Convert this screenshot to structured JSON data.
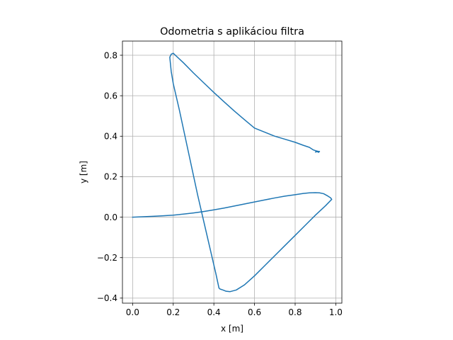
{
  "chart_data": {
    "type": "line",
    "title": "Odometria s aplikáciou filtra",
    "xlabel": "x [m]",
    "ylabel": "y [m]",
    "xlim": [
      -0.05,
      1.03
    ],
    "ylim": [
      -0.425,
      0.87
    ],
    "grid": true,
    "aspect": "equal",
    "xticks": [
      0.0,
      0.2,
      0.4,
      0.6,
      0.8,
      1.0
    ],
    "xtick_labels": [
      "0.0",
      "0.2",
      "0.4",
      "0.6",
      "0.8",
      "1.0"
    ],
    "yticks": [
      -0.4,
      -0.2,
      0.0,
      0.2,
      0.4,
      0.6,
      0.8
    ],
    "ytick_labels": [
      "−0.4",
      "−0.2",
      "0.0",
      "0.2",
      "0.4",
      "0.6",
      "0.8"
    ],
    "series": [
      {
        "color": "#1f77b4",
        "x": [
          0.0,
          0.05,
          0.1,
          0.15,
          0.2,
          0.25,
          0.3,
          0.35,
          0.4,
          0.45,
          0.5,
          0.55,
          0.6,
          0.65,
          0.7,
          0.75,
          0.8,
          0.84,
          0.87,
          0.9,
          0.92,
          0.94,
          0.96,
          0.975,
          0.98,
          0.95,
          0.9,
          0.85,
          0.8,
          0.75,
          0.7,
          0.65,
          0.6,
          0.55,
          0.51,
          0.48,
          0.46,
          0.445,
          0.43,
          0.425,
          0.41,
          0.38,
          0.35,
          0.32,
          0.29,
          0.26,
          0.23,
          0.2,
          0.19,
          0.185,
          0.183,
          0.19,
          0.2,
          0.25,
          0.3,
          0.35,
          0.4,
          0.45,
          0.5,
          0.55,
          0.6,
          0.65,
          0.7,
          0.75,
          0.8,
          0.84,
          0.87,
          0.89,
          0.905,
          0.915,
          0.918,
          0.915,
          0.91,
          0.92,
          0.9
        ],
        "y": [
          0.0,
          0.002,
          0.004,
          0.007,
          0.01,
          0.015,
          0.021,
          0.028,
          0.036,
          0.045,
          0.055,
          0.065,
          0.075,
          0.085,
          0.095,
          0.104,
          0.111,
          0.117,
          0.12,
          0.121,
          0.12,
          0.116,
          0.105,
          0.095,
          0.088,
          0.057,
          0.01,
          -0.04,
          -0.09,
          -0.14,
          -0.19,
          -0.24,
          -0.29,
          -0.335,
          -0.36,
          -0.368,
          -0.366,
          -0.36,
          -0.355,
          -0.35,
          -0.28,
          -0.15,
          -0.02,
          0.11,
          0.25,
          0.39,
          0.53,
          0.66,
          0.72,
          0.77,
          0.79,
          0.805,
          0.81,
          0.763,
          0.712,
          0.664,
          0.616,
          0.57,
          0.525,
          0.482,
          0.44,
          0.42,
          0.4,
          0.385,
          0.37,
          0.355,
          0.345,
          0.332,
          0.327,
          0.325,
          0.323,
          0.32,
          0.325,
          0.325,
          0.322
        ]
      }
    ]
  }
}
